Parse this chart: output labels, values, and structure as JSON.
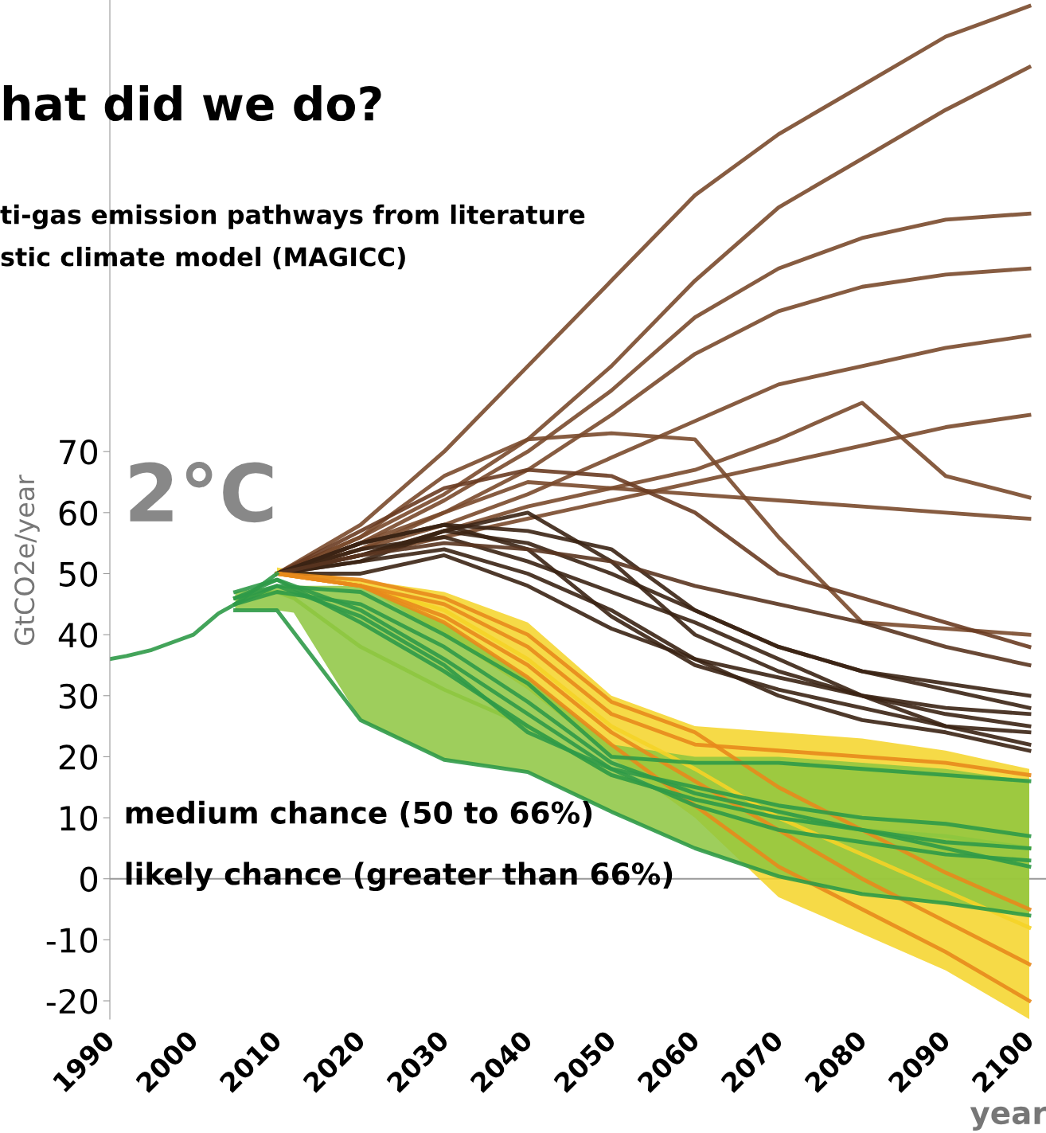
{
  "chart_data": {
    "type": "line",
    "title": "hat did we do?",
    "subtitle": "ti-gas emission pathways from literature\nstic climate model (MAGICC)",
    "ylabel": "GtCO2e/year",
    "xlabel": "year",
    "annotations": [
      "2°C",
      "medium chance (50 to 66%)",
      "likely chance (greater than 66%)"
    ],
    "xlim": [
      1990,
      2102
    ],
    "ylim": [
      -23,
      144
    ],
    "xticks": [
      1990,
      2000,
      2010,
      2020,
      2030,
      2040,
      2050,
      2060,
      2070,
      2080,
      2090,
      2100
    ],
    "yticks": [
      -20,
      -10,
      0,
      10,
      20,
      30,
      40,
      50,
      60,
      70
    ],
    "grid": false,
    "ref_lines": [
      {
        "axis": "y",
        "value": 0,
        "color": "#999999",
        "line_style": "solid"
      }
    ],
    "legend": false,
    "line_style": "solid",
    "marker": "none",
    "series": [
      {
        "color": "#7a4a2c",
        "x": [
          2010,
          2020,
          2030,
          2040,
          2050,
          2060,
          2070,
          2080,
          2090,
          2100
        ],
        "values": [
          50,
          58,
          70,
          84,
          98,
          112,
          122,
          130,
          138,
          143
        ]
      },
      {
        "color": "#7a4a2c",
        "x": [
          2010,
          2020,
          2030,
          2040,
          2050,
          2060,
          2070,
          2080,
          2090,
          2100
        ],
        "values": [
          50,
          56,
          63,
          72,
          84,
          98,
          110,
          118,
          126,
          133
        ]
      },
      {
        "color": "#7a4a2c",
        "x": [
          2010,
          2020,
          2030,
          2040,
          2050,
          2060,
          2070,
          2080,
          2090,
          2100
        ],
        "values": [
          50,
          55,
          62,
          70,
          80,
          92,
          100,
          105,
          108,
          109
        ]
      },
      {
        "color": "#7a4a2c",
        "x": [
          2010,
          2020,
          2030,
          2040,
          2050,
          2060,
          2070,
          2080,
          2090,
          2100
        ],
        "values": [
          50,
          55,
          60,
          67,
          76,
          86,
          93,
          97,
          99,
          100
        ]
      },
      {
        "color": "#7a4a2c",
        "x": [
          2010,
          2020,
          2030,
          2040,
          2050,
          2060,
          2070,
          2080,
          2090,
          2100
        ],
        "values": [
          50,
          54,
          58,
          63,
          69,
          75,
          81,
          84,
          87,
          89
        ]
      },
      {
        "color": "#7a4a2c",
        "x": [
          2010,
          2020,
          2030,
          2040,
          2050,
          2060,
          2070,
          2080,
          2090,
          2100
        ],
        "values": [
          50,
          53,
          56,
          59,
          62,
          65,
          68,
          71,
          74,
          76
        ]
      },
      {
        "color": "#7a4a2c",
        "x": [
          2010,
          2020,
          2030,
          2040,
          2050,
          2060,
          2070,
          2080,
          2090,
          2100
        ],
        "values": [
          50,
          53,
          57,
          61,
          64,
          67,
          72,
          78,
          66,
          62.5
        ]
      },
      {
        "color": "#7a4a2c",
        "x": [
          2010,
          2020,
          2030,
          2040,
          2050,
          2060,
          2070,
          2080,
          2090,
          2100
        ],
        "values": [
          50,
          54,
          60,
          65,
          64,
          63,
          62,
          61,
          60,
          59
        ]
      },
      {
        "color": "#7a4a2c",
        "x": [
          2010,
          2020,
          2030,
          2040,
          2050,
          2060,
          2070,
          2080,
          2090,
          2100
        ],
        "values": [
          50,
          56,
          66,
          72,
          73,
          72,
          56,
          42,
          41,
          40
        ]
      },
      {
        "color": "#6a3c22",
        "x": [
          2010,
          2020,
          2030,
          2040,
          2050,
          2060,
          2070,
          2080,
          2090,
          2100
        ],
        "values": [
          50,
          57,
          64,
          67,
          66,
          60,
          50,
          46,
          42,
          38
        ]
      },
      {
        "color": "#3b2314",
        "x": [
          2010,
          2020,
          2030,
          2040,
          2050,
          2060,
          2070,
          2080,
          2090,
          2100
        ],
        "values": [
          50,
          55,
          58,
          57,
          54,
          44,
          38,
          34,
          31,
          28
        ]
      },
      {
        "color": "#3b2314",
        "x": [
          2010,
          2020,
          2030,
          2040,
          2050,
          2060,
          2070,
          2080,
          2090,
          2100
        ],
        "values": [
          50,
          52,
          57,
          60,
          52,
          40,
          34,
          30,
          27,
          25
        ]
      },
      {
        "color": "#3b2314",
        "x": [
          2010,
          2020,
          2030,
          2040,
          2050,
          2060,
          2070,
          2080,
          2090,
          2100
        ],
        "values": [
          50,
          54,
          56,
          52,
          47,
          42,
          36,
          30,
          25,
          22
        ]
      },
      {
        "color": "#3b2314",
        "x": [
          2010,
          2020,
          2030,
          2040,
          2050,
          2060,
          2070,
          2080,
          2090,
          2100
        ],
        "values": [
          50,
          52,
          54,
          50,
          44,
          36,
          30,
          26,
          24,
          21
        ]
      },
      {
        "color": "#3b2314",
        "x": [
          2010,
          2020,
          2030,
          2040,
          2050,
          2060,
          2070,
          2080,
          2090,
          2100
        ],
        "values": [
          50,
          55,
          58,
          54,
          43,
          35,
          31,
          28,
          25,
          24
        ]
      },
      {
        "color": "#3b2314",
        "x": [
          2010,
          2020,
          2030,
          2040,
          2050,
          2060,
          2070,
          2080,
          2090,
          2100
        ],
        "values": [
          50,
          50,
          53,
          48,
          41,
          36,
          33,
          30,
          28,
          27
        ]
      },
      {
        "color": "#3b2314",
        "x": [
          2010,
          2020,
          2030,
          2040,
          2050,
          2060,
          2070,
          2080,
          2090,
          2100
        ],
        "values": [
          50,
          53,
          57,
          55,
          50,
          44,
          38,
          34,
          32,
          30
        ]
      },
      {
        "color": "#5a3520",
        "x": [
          2010,
          2020,
          2030,
          2040,
          2050,
          2060,
          2070,
          2080,
          2090,
          2100
        ],
        "values": [
          50,
          53,
          55,
          54,
          52,
          48,
          45,
          42,
          38,
          35
        ]
      },
      {
        "color": "#f5d327",
        "x": [
          2010,
          2020,
          2030,
          2040,
          2050,
          2060,
          2070,
          2080,
          2090,
          2100
        ],
        "values": [
          50,
          48,
          44,
          36,
          25,
          18,
          10,
          4,
          -2,
          -8
        ],
        "lower": [
          50,
          48,
          40,
          31,
          20,
          10,
          -3,
          -9,
          -15,
          -23
        ],
        "upper": [
          51,
          49,
          47,
          42,
          30,
          25,
          24,
          23,
          21,
          18
        ]
      },
      {
        "color": "#e8891c",
        "x": [
          2010,
          2020,
          2030,
          2040,
          2050,
          2060,
          2070,
          2080,
          2090,
          2100
        ],
        "values": [
          50,
          48,
          45,
          38,
          27,
          22,
          21,
          20,
          19,
          17
        ]
      },
      {
        "color": "#e8891c",
        "x": [
          2010,
          2020,
          2030,
          2040,
          2050,
          2060,
          2070,
          2080,
          2090,
          2100
        ],
        "values": [
          50,
          48,
          42,
          33,
          22,
          12,
          2,
          -5,
          -12,
          -20
        ]
      },
      {
        "color": "#e8891c",
        "x": [
          2010,
          2020,
          2030,
          2040,
          2050,
          2060,
          2070,
          2080,
          2090,
          2100
        ],
        "values": [
          50,
          48,
          43,
          35,
          24,
          16,
          8,
          0,
          -7,
          -14
        ]
      },
      {
        "color": "#e8891c",
        "x": [
          2010,
          2020,
          2030,
          2040,
          2050,
          2060,
          2070,
          2080,
          2090,
          2100
        ],
        "values": [
          50,
          49,
          46,
          40,
          29,
          24,
          15,
          8,
          1,
          -5
        ]
      },
      {
        "color": "#8dc63f",
        "x": [
          2005,
          2010,
          2012,
          2020,
          2030,
          2040,
          2050,
          2060,
          2070,
          2080,
          2090,
          2100
        ],
        "values": [
          46,
          47,
          46,
          38,
          31,
          25,
          17,
          13,
          10,
          8,
          7,
          5
        ],
        "lower": [
          44,
          44,
          43.6,
          26,
          19.5,
          17.5,
          11,
          5,
          0.4,
          -2.5,
          -4,
          -6
        ],
        "upper": [
          47,
          48,
          48,
          48,
          42,
          33,
          22,
          20,
          20,
          19,
          18,
          16
        ]
      },
      {
        "color": "#2f9a48",
        "x": [
          1990,
          1992,
          1995,
          1998,
          2000,
          2003,
          2005,
          2008,
          2010
        ],
        "values": [
          36,
          36.5,
          37.5,
          39,
          40,
          43.5,
          45,
          48,
          50
        ]
      },
      {
        "color": "#2f9a48",
        "x": [
          2005,
          2010,
          2020,
          2030,
          2040,
          2050,
          2060,
          2070,
          2080,
          2090,
          2100
        ],
        "values": [
          45,
          48,
          47,
          40,
          32,
          20,
          19,
          19,
          18,
          17,
          16
        ]
      },
      {
        "color": "#2f9a48",
        "x": [
          2005,
          2010,
          2020,
          2030,
          2040,
          2050,
          2060,
          2070,
          2080,
          2090,
          2100
        ],
        "values": [
          46,
          49,
          44,
          36,
          27,
          18,
          12,
          8,
          6,
          4,
          3
        ]
      },
      {
        "color": "#2f9a48",
        "x": [
          2005,
          2010,
          2020,
          2030,
          2040,
          2050,
          2060,
          2070,
          2080,
          2090,
          2100
        ],
        "values": [
          47,
          49,
          42,
          34,
          25,
          17,
          13,
          10,
          8,
          6,
          5
        ]
      },
      {
        "color": "#2f9a48",
        "x": [
          2005,
          2010,
          2020,
          2030,
          2040,
          2050,
          2060,
          2070,
          2080,
          2090,
          2100
        ],
        "values": [
          45,
          47,
          45,
          38,
          29,
          19,
          14,
          11,
          8,
          5,
          2
        ]
      },
      {
        "color": "#2f9a48",
        "x": [
          2005,
          2010,
          2020,
          2030,
          2040,
          2050,
          2060,
          2070,
          2080,
          2090,
          2100
        ],
        "values": [
          44,
          44,
          26,
          19.5,
          17.5,
          11,
          5,
          0.4,
          -2.5,
          -4,
          -6
        ]
      },
      {
        "color": "#2f9a48",
        "x": [
          2005,
          2010,
          2020,
          2030,
          2040,
          2050,
          2060,
          2070,
          2080,
          2090,
          2100
        ],
        "values": [
          46,
          48,
          43,
          35,
          24,
          18,
          15,
          12,
          10,
          9,
          7
        ]
      }
    ]
  }
}
